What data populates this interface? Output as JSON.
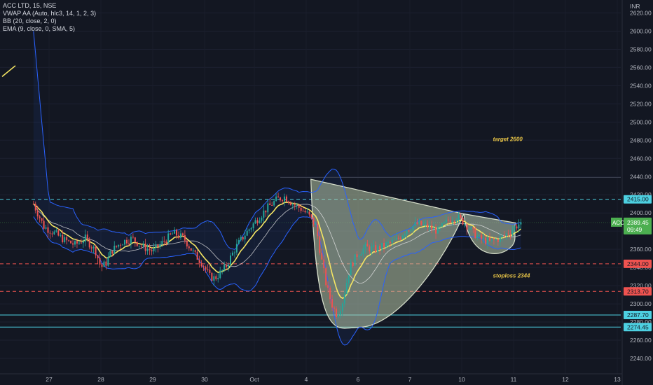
{
  "legend": {
    "symbol": "ACC LTD, 15, NSE",
    "vwap": "VWAP AA (Auto, hlc3, 14, 1, 2, 3)",
    "bb": "BB (20, close, 2, 0)",
    "ema": "EMA (9, close, 0, SMA, 5)"
  },
  "colors": {
    "background": "#131722",
    "up": "#26a69a",
    "down": "#ef5350",
    "bb_band": "#2962ff",
    "ema": "#f5e663",
    "basis": "#e8e8e8",
    "cyan": "#4dd0e1",
    "red_line": "#ef5350",
    "pattern_fill": "#b8c9a8",
    "annotation": "#e8c547",
    "price_tag": "#4caf50"
  },
  "chart_data": {
    "type": "candlestick",
    "currency": "INR",
    "y_ticks": [
      2240,
      2260,
      2280,
      2300,
      2320,
      2340,
      2360,
      2380,
      2400,
      2420,
      2440,
      2460,
      2480,
      2500,
      2520,
      2540,
      2560,
      2580,
      2600,
      2620
    ],
    "x_ticks": [
      "27",
      "28",
      "29",
      "30",
      "Oct",
      "4",
      "6",
      "7",
      "10",
      "11",
      "12",
      "13"
    ],
    "ylim": [
      2238,
      2630
    ],
    "horizontal_levels": [
      {
        "value": 2415.0,
        "label": "2415.00",
        "style": "dashed",
        "color": "#4dd0e1"
      },
      {
        "value": 2344.0,
        "label": "2344.00",
        "style": "dashed",
        "color": "#ef5350"
      },
      {
        "value": 2313.7,
        "label": "2313.70",
        "style": "dashed",
        "color": "#ef5350"
      },
      {
        "value": 2287.7,
        "label": "2287.70",
        "style": "solid",
        "color": "#4dd0e1"
      },
      {
        "value": 2274.45,
        "label": "2274.45",
        "style": "solid",
        "color": "#4dd0e1"
      }
    ],
    "current_price": {
      "symbol": "ACC",
      "value": "2389.45",
      "countdown": "09:49"
    },
    "annotations": [
      {
        "text": "target 2600",
        "time": 8.4,
        "price": 2479
      },
      {
        "text": "stoploss 2344",
        "time": 8.4,
        "price": 2329
      }
    ],
    "ohlc_path": [
      [
        -0.3,
        2410
      ],
      [
        -0.1,
        2385
      ],
      [
        0.1,
        2378
      ],
      [
        0.3,
        2370
      ],
      [
        0.5,
        2365
      ],
      [
        0.7,
        2372
      ],
      [
        0.9,
        2358
      ],
      [
        1.0,
        2340
      ],
      [
        1.1,
        2345
      ],
      [
        1.2,
        2358
      ],
      [
        1.4,
        2368
      ],
      [
        1.6,
        2372
      ],
      [
        1.8,
        2363
      ],
      [
        2.0,
        2358
      ],
      [
        2.2,
        2368
      ],
      [
        2.4,
        2378
      ],
      [
        2.6,
        2372
      ],
      [
        2.8,
        2355
      ],
      [
        2.95,
        2345
      ],
      [
        3.1,
        2330
      ],
      [
        3.2,
        2328
      ],
      [
        3.4,
        2340
      ],
      [
        3.6,
        2362
      ],
      [
        3.8,
        2378
      ],
      [
        4.0,
        2392
      ],
      [
        4.2,
        2405
      ],
      [
        4.4,
        2415
      ],
      [
        4.55,
        2418
      ],
      [
        4.7,
        2410
      ],
      [
        4.85,
        2405
      ],
      [
        5.0,
        2398
      ],
      [
        5.15,
        2385
      ],
      [
        5.25,
        2350
      ],
      [
        5.35,
        2320
      ],
      [
        5.45,
        2300
      ],
      [
        5.55,
        2288
      ],
      [
        5.65,
        2300
      ],
      [
        5.8,
        2340
      ],
      [
        5.95,
        2355
      ],
      [
        6.1,
        2362
      ],
      [
        6.3,
        2360
      ],
      [
        6.5,
        2365
      ],
      [
        6.7,
        2370
      ],
      [
        6.9,
        2382
      ],
      [
        7.1,
        2388
      ],
      [
        7.3,
        2385
      ],
      [
        7.5,
        2380
      ],
      [
        7.7,
        2392
      ],
      [
        7.85,
        2396
      ],
      [
        8.0,
        2390
      ],
      [
        8.15,
        2380
      ],
      [
        8.3,
        2372
      ],
      [
        8.5,
        2368
      ],
      [
        8.7,
        2372
      ],
      [
        8.9,
        2380
      ],
      [
        9.0,
        2385
      ],
      [
        9.1,
        2389.45
      ]
    ],
    "pattern": {
      "cup_rim_left": {
        "time": 5.05,
        "price": 2437
      },
      "cup_bottom": {
        "time": 5.95,
        "price": 2274
      },
      "cup_rim_right": {
        "time": 8.0,
        "price": 2399
      },
      "handle_bottom": {
        "time": 8.4,
        "price": 2357
      },
      "handle_right": {
        "time": 9.0,
        "price": 2389
      }
    }
  }
}
